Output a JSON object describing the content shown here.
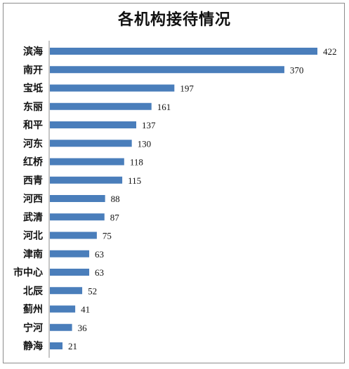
{
  "chart_data": {
    "type": "bar",
    "orientation": "horizontal",
    "title": "各机构接待情况",
    "categories": [
      "滨海",
      "南开",
      "宝坻",
      "东丽",
      "和平",
      "河东",
      "红桥",
      "西青",
      "河西",
      "武清",
      "河北",
      "津南",
      "市中心",
      "北辰",
      "蓟州",
      "宁河",
      "静海"
    ],
    "values": [
      422,
      370,
      197,
      161,
      137,
      130,
      118,
      115,
      88,
      87,
      75,
      63,
      63,
      52,
      41,
      36,
      21
    ],
    "xlim": [
      0,
      440
    ],
    "grid": false,
    "legend": "none",
    "bar_color": "#4a7ebb",
    "data_labels": true
  }
}
